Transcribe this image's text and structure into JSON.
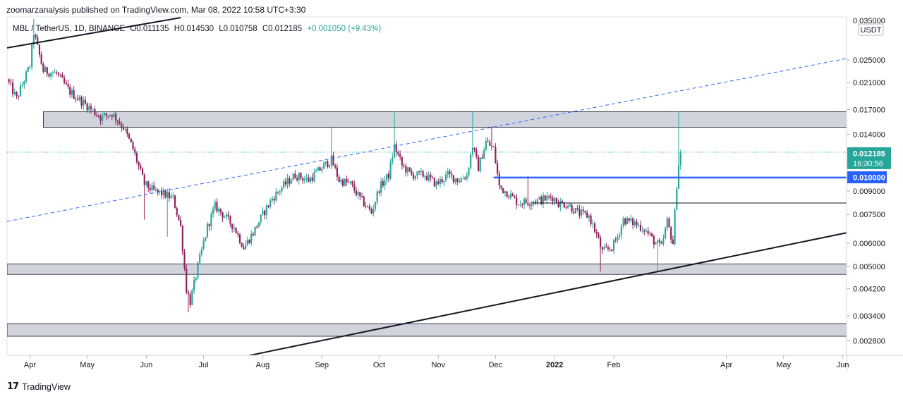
{
  "header": {
    "publisher": "zoomarzanalysis published on TradingView.com, Mar 08, 2022 10:58 UTC+3:30"
  },
  "symbol_bar": {
    "symbol": "MBL / TetherUS, 1D, BINANCE",
    "open": "O0.011135",
    "high": "H0.014530",
    "low": "L0.010758",
    "close": "C0.012185",
    "change": "+0.001050 (+9.43%)"
  },
  "price_axis": {
    "currency": "USDT",
    "top_partial_label": "0.035000",
    "last_price": "0.012185",
    "countdown": "16:30:56",
    "level_label": "0.010000"
  },
  "footer": {
    "brand": "TradingView"
  },
  "colors": {
    "up": "#26a69a",
    "down": "#8e1f5c",
    "level_line": "#2962ff",
    "zone_fill": "#d1d4dc",
    "last_price_bg": "#26a69a"
  },
  "chart_data": {
    "type": "candlestick",
    "y_scale": "log",
    "ylim": [
      0.0025,
      0.035
    ],
    "y_ticks": [
      {
        "value": 0.025,
        "label": "0.025000"
      },
      {
        "value": 0.021,
        "label": "0.021000"
      },
      {
        "value": 0.017,
        "label": "0.017000"
      },
      {
        "value": 0.014,
        "label": "0.014000"
      },
      {
        "value": 0.009,
        "label": "0.009000"
      },
      {
        "value": 0.0075,
        "label": "0.007500"
      },
      {
        "value": 0.006,
        "label": "0.006000"
      },
      {
        "value": 0.005,
        "label": "0.005000"
      },
      {
        "value": 0.0042,
        "label": "0.004200"
      },
      {
        "value": 0.0034,
        "label": "0.003400"
      },
      {
        "value": 0.0028,
        "label": "0.002800"
      }
    ],
    "x_range": [
      "2021-03-20",
      "2022-06-03"
    ],
    "x_ticks": [
      {
        "date": "2021-04-01",
        "label": "Apr"
      },
      {
        "date": "2021-05-01",
        "label": "May"
      },
      {
        "date": "2021-06-01",
        "label": "Jun"
      },
      {
        "date": "2021-07-01",
        "label": "Jul"
      },
      {
        "date": "2021-08-01",
        "label": "Aug"
      },
      {
        "date": "2021-09-01",
        "label": "Sep"
      },
      {
        "date": "2021-10-01",
        "label": "Oct"
      },
      {
        "date": "2021-11-01",
        "label": "Nov"
      },
      {
        "date": "2021-12-01",
        "label": "Dec"
      },
      {
        "date": "2022-01-01",
        "label": "2022",
        "bold": true
      },
      {
        "date": "2022-02-01",
        "label": "Feb"
      },
      {
        "date": "2022-04-01",
        "label": "Apr"
      },
      {
        "date": "2022-05-01",
        "label": "May"
      },
      {
        "date": "2022-06-01",
        "label": "Jun"
      }
    ],
    "price_path": [
      [
        "2021-03-20",
        0.0215
      ],
      [
        "2021-03-25",
        0.0185
      ],
      [
        "2021-04-01",
        0.024
      ],
      [
        "2021-04-03",
        0.031
      ],
      [
        "2021-04-08",
        0.023
      ],
      [
        "2021-04-15",
        0.0225
      ],
      [
        "2021-04-22",
        0.0195
      ],
      [
        "2021-05-01",
        0.0175
      ],
      [
        "2021-05-08",
        0.016
      ],
      [
        "2021-05-14",
        0.0165
      ],
      [
        "2021-05-20",
        0.0148
      ],
      [
        "2021-05-25",
        0.0125
      ],
      [
        "2021-05-31",
        0.0095
      ],
      [
        "2021-06-05",
        0.009
      ],
      [
        "2021-06-10",
        0.0088
      ],
      [
        "2021-06-15",
        0.0085
      ],
      [
        "2021-06-19",
        0.0068
      ],
      [
        "2021-06-22",
        0.0042
      ],
      [
        "2021-06-24",
        0.0038
      ],
      [
        "2021-06-28",
        0.005
      ],
      [
        "2021-07-03",
        0.0068
      ],
      [
        "2021-07-07",
        0.008
      ],
      [
        "2021-07-12",
        0.0074
      ],
      [
        "2021-07-17",
        0.0068
      ],
      [
        "2021-07-22",
        0.0058
      ],
      [
        "2021-07-27",
        0.0065
      ],
      [
        "2021-08-01",
        0.0075
      ],
      [
        "2021-08-06",
        0.0085
      ],
      [
        "2021-08-12",
        0.0094
      ],
      [
        "2021-08-18",
        0.0102
      ],
      [
        "2021-08-25",
        0.0098
      ],
      [
        "2021-09-01",
        0.0108
      ],
      [
        "2021-09-06",
        0.0115
      ],
      [
        "2021-09-10",
        0.0098
      ],
      [
        "2021-09-16",
        0.0095
      ],
      [
        "2021-09-21",
        0.0085
      ],
      [
        "2021-09-27",
        0.0076
      ],
      [
        "2021-10-01",
        0.0092
      ],
      [
        "2021-10-06",
        0.0102
      ],
      [
        "2021-10-09",
        0.0128
      ],
      [
        "2021-10-13",
        0.011
      ],
      [
        "2021-10-18",
        0.0102
      ],
      [
        "2021-10-25",
        0.0102
      ],
      [
        "2021-10-31",
        0.0095
      ],
      [
        "2021-11-06",
        0.0102
      ],
      [
        "2021-11-12",
        0.0098
      ],
      [
        "2021-11-16",
        0.0102
      ],
      [
        "2021-11-19",
        0.0128
      ],
      [
        "2021-11-22",
        0.0108
      ],
      [
        "2021-11-26",
        0.0132
      ],
      [
        "2021-11-30",
        0.0125
      ],
      [
        "2021-12-03",
        0.0093
      ],
      [
        "2021-12-08",
        0.0088
      ],
      [
        "2021-12-13",
        0.0082
      ],
      [
        "2021-12-19",
        0.0083
      ],
      [
        "2021-12-25",
        0.0084
      ],
      [
        "2021-12-31",
        0.0086
      ],
      [
        "2022-01-03",
        0.0082
      ],
      [
        "2022-01-08",
        0.0081
      ],
      [
        "2022-01-13",
        0.0076
      ],
      [
        "2022-01-19",
        0.0074
      ],
      [
        "2022-01-23",
        0.0064
      ],
      [
        "2022-01-26",
        0.0056
      ],
      [
        "2022-01-31",
        0.0058
      ],
      [
        "2022-02-03",
        0.0063
      ],
      [
        "2022-02-06",
        0.0072
      ],
      [
        "2022-02-12",
        0.007
      ],
      [
        "2022-02-17",
        0.0067
      ],
      [
        "2022-02-22",
        0.0061
      ],
      [
        "2022-02-26",
        0.0058
      ],
      [
        "2022-03-01",
        0.0071
      ],
      [
        "2022-03-04",
        0.006
      ],
      [
        "2022-03-06",
        0.0095
      ],
      [
        "2022-03-07",
        0.0111
      ],
      [
        "2022-03-08",
        0.012185
      ]
    ],
    "spikes": [
      {
        "date": "2021-04-03",
        "high": 0.0345
      },
      {
        "date": "2021-05-31",
        "low": 0.0072
      },
      {
        "date": "2021-06-12",
        "low": 0.0063
      },
      {
        "date": "2021-06-23",
        "low": 0.0035
      },
      {
        "date": "2021-09-06",
        "high": 0.0148
      },
      {
        "date": "2021-10-09",
        "high": 0.0167
      },
      {
        "date": "2021-11-19",
        "high": 0.0168
      },
      {
        "date": "2021-11-29",
        "high": 0.0149
      },
      {
        "date": "2021-12-18",
        "high": 0.0101
      },
      {
        "date": "2022-01-25",
        "low": 0.0048
      },
      {
        "date": "2022-02-24",
        "low": 0.0048
      },
      {
        "date": "2022-03-07",
        "high": 0.0168
      }
    ],
    "zones": [
      {
        "from": "2021-04-08",
        "to": "2022-06-03",
        "low": 0.0148,
        "high": 0.0167
      },
      {
        "from": "2021-03-20",
        "to": "2022-06-03",
        "low": 0.0047,
        "high": 0.0051
      },
      {
        "from": "2021-03-20",
        "to": "2022-06-03",
        "low": 0.0029,
        "high": 0.0032
      }
    ],
    "horizontal_levels": [
      {
        "price": 0.01,
        "from": "2021-11-30",
        "to": "2022-06-03",
        "color": "#2962ff",
        "width": 2.5
      },
      {
        "price": 0.0082,
        "from": "2021-12-20",
        "to": "2022-06-03",
        "color": "#131722",
        "width": 1
      }
    ],
    "trend_lines": [
      {
        "from": [
          "2021-03-20",
          0.0275
        ],
        "to": [
          "2021-06-19",
          0.0348
        ],
        "style": "solid",
        "width": 2
      },
      {
        "from": [
          "2021-03-20",
          0.0071
        ],
        "to": [
          "2022-06-03",
          0.0253
        ],
        "style": "dashed",
        "width": 1,
        "color": "#2962ff"
      },
      {
        "from": [
          "2021-07-12",
          0.0024
        ],
        "to": [
          "2022-06-03",
          0.0065
        ],
        "style": "solid",
        "width": 2
      }
    ],
    "last_price": 0.012185
  }
}
